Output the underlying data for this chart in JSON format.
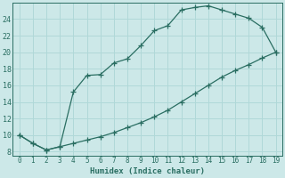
{
  "xlabel": "Humidex (Indice chaleur)",
  "bg_color": "#cce8e8",
  "grid_color": "#b0d8d8",
  "line_color": "#2a6e62",
  "marker": "+",
  "x_upper": [
    0,
    1,
    2,
    3,
    4,
    5,
    6,
    7,
    8,
    9,
    10,
    11,
    12,
    13,
    14,
    15,
    16,
    17,
    18,
    19
  ],
  "y_upper": [
    10,
    9,
    8.2,
    8.6,
    15.2,
    17.2,
    17.3,
    18.7,
    19.2,
    20.8,
    22.6,
    23.2,
    25.1,
    25.4,
    25.6,
    25.1,
    24.6,
    24.1,
    23.0,
    20.0
  ],
  "x_lower": [
    0,
    1,
    2,
    3,
    4,
    5,
    6,
    7,
    8,
    9,
    10,
    11,
    12,
    13,
    14,
    15,
    16,
    17,
    18,
    19
  ],
  "y_lower": [
    10,
    9,
    8.2,
    8.6,
    9.0,
    9.4,
    9.8,
    10.3,
    10.9,
    11.5,
    12.2,
    13.0,
    14.0,
    15.0,
    16.0,
    17.0,
    17.8,
    18.5,
    19.3,
    20.0
  ],
  "xlim": [
    -0.5,
    19.5
  ],
  "ylim": [
    7.5,
    26.0
  ],
  "xticks": [
    0,
    1,
    2,
    3,
    4,
    5,
    6,
    7,
    8,
    9,
    10,
    11,
    12,
    13,
    14,
    15,
    16,
    17,
    18,
    19
  ],
  "yticks": [
    8,
    10,
    12,
    14,
    16,
    18,
    20,
    22,
    24
  ]
}
